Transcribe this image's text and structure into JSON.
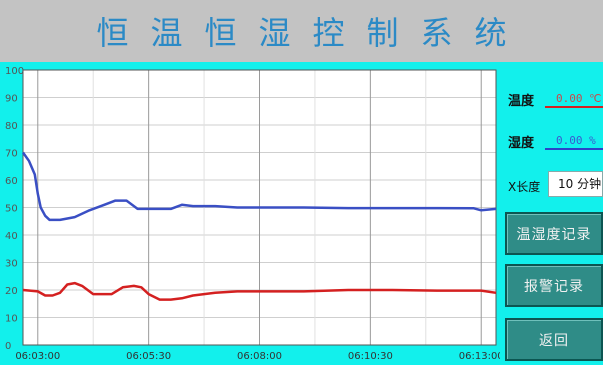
{
  "title": "恒温恒湿控制系统",
  "legend": {
    "temperature": {
      "label": "温度",
      "value": "0.00 ℃",
      "color": "#d42020"
    },
    "humidity": {
      "label": "湿度",
      "value": "0.00 %",
      "color": "#2a44c8"
    }
  },
  "x_length": {
    "label": "X长度",
    "value": "10 分钟"
  },
  "buttons": {
    "history": "温湿度记录",
    "alarm": "报警记录",
    "back": "返回"
  },
  "chart_data": {
    "type": "line",
    "ylim": [
      0,
      100
    ],
    "yticks": [
      0,
      10,
      20,
      30,
      40,
      50,
      60,
      70,
      80,
      90,
      100
    ],
    "xlim": [
      "06:02:40",
      "06:13:20"
    ],
    "xticks": [
      "06:03:00",
      "06:05:30",
      "06:08:00",
      "06:10:30",
      "06:13:00"
    ],
    "grid": true,
    "series": [
      {
        "name": "湿度",
        "color": "#3a4fc4",
        "x": [
          "06:02:40",
          "06:02:48",
          "06:02:56",
          "06:03:00",
          "06:03:04",
          "06:03:10",
          "06:03:16",
          "06:03:30",
          "06:03:50",
          "06:04:10",
          "06:04:30",
          "06:04:45",
          "06:05:00",
          "06:05:15",
          "06:05:30",
          "06:05:45",
          "06:06:00",
          "06:06:15",
          "06:06:30",
          "06:07:00",
          "06:07:30",
          "06:08:00",
          "06:09:00",
          "06:10:00",
          "06:11:00",
          "06:12:00",
          "06:12:50",
          "06:13:00",
          "06:13:20"
        ],
        "values": [
          70,
          67,
          62,
          55,
          50,
          47,
          45.5,
          45.5,
          46.5,
          49,
          51,
          52.5,
          52.5,
          49.5,
          49.5,
          49.5,
          49.5,
          51,
          50.5,
          50.5,
          50,
          50,
          50,
          49.8,
          49.8,
          49.8,
          49.7,
          49,
          49.5
        ]
      },
      {
        "name": "温度",
        "color": "#d42020",
        "x": [
          "06:02:40",
          "06:03:00",
          "06:03:10",
          "06:03:20",
          "06:03:30",
          "06:03:40",
          "06:03:50",
          "06:04:00",
          "06:04:15",
          "06:04:30",
          "06:04:40",
          "06:04:55",
          "06:05:10",
          "06:05:20",
          "06:05:30",
          "06:05:45",
          "06:06:00",
          "06:06:15",
          "06:06:30",
          "06:07:00",
          "06:07:30",
          "06:08:00",
          "06:09:00",
          "06:10:00",
          "06:11:00",
          "06:12:00",
          "06:13:00",
          "06:13:20"
        ],
        "values": [
          20,
          19.5,
          18,
          18,
          19,
          22,
          22.5,
          21.5,
          18.5,
          18.5,
          18.5,
          21,
          21.5,
          21,
          18.5,
          16.5,
          16.5,
          17,
          18,
          19,
          19.5,
          19.5,
          19.5,
          20,
          20,
          19.8,
          19.8,
          19
        ]
      }
    ]
  }
}
